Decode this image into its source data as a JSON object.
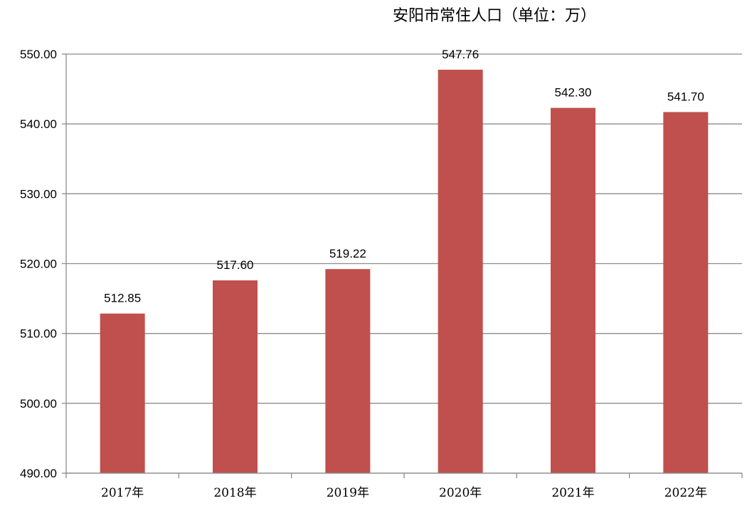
{
  "chart_data": {
    "type": "bar",
    "title": "安阳市常住人口（单位：万）",
    "xlabel": "",
    "ylabel": "",
    "categories": [
      "2017年",
      "2018年",
      "2019年",
      "2020年",
      "2021年",
      "2022年"
    ],
    "values": [
      512.85,
      517.6,
      519.22,
      547.76,
      542.3,
      541.7
    ],
    "value_labels": [
      "512.85",
      "517.60",
      "519.22",
      "547.76",
      "542.30",
      "541.70"
    ],
    "ylim": [
      490,
      550
    ],
    "y_ticks": [
      490,
      500,
      510,
      520,
      530,
      540,
      550
    ],
    "y_tick_labels": [
      "490.00",
      "500.00",
      "510.00",
      "520.00",
      "530.00",
      "540.00",
      "550.00"
    ],
    "grid": true,
    "legend": "none",
    "colors": {
      "bar": "#c0504d",
      "grid": "#8c8c8c",
      "axis": "#8c8c8c"
    }
  }
}
